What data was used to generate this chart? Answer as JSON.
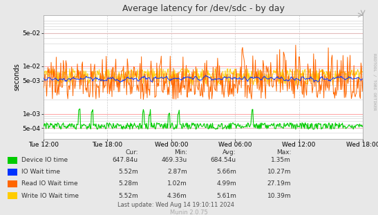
{
  "title": "Average latency for /dev/sdc - by day",
  "ylabel": "seconds",
  "watermark": "RRDTOOL / TOBI OETIKER",
  "munin_version": "Munin 2.0.75",
  "last_update": "Last update: Wed Aug 14 19:10:11 2024",
  "x_tick_labels": [
    "Tue 12:00",
    "Tue 18:00",
    "Wed 00:00",
    "Wed 06:00",
    "Wed 12:00",
    "Wed 18:00"
  ],
  "background_color": "#e8e8e8",
  "plot_bg_color": "#ffffff",
  "grid_color_major": "#ffaaaa",
  "grid_color_minor": "#cccccc",
  "grid_color_x": "#cccccc",
  "legend": [
    {
      "label": "Device IO time",
      "color": "#00cc00"
    },
    {
      "label": "IO Wait time",
      "color": "#0033ff"
    },
    {
      "label": "Read IO Wait time",
      "color": "#ff6600"
    },
    {
      "label": "Write IO Wait time",
      "color": "#ffcc00"
    }
  ],
  "legend_table": {
    "headers": [
      "Cur:",
      "Min:",
      "Avg:",
      "Max:"
    ],
    "rows": [
      [
        "Device IO time",
        "647.84u",
        "469.33u",
        "684.54u",
        "1.35m"
      ],
      [
        "IO Wait time",
        "5.52m",
        "2.87m",
        "5.66m",
        "10.27m"
      ],
      [
        "Read IO Wait time",
        "5.28m",
        "1.02m",
        "4.99m",
        "27.19m"
      ],
      [
        "Write IO Wait time",
        "5.52m",
        "4.36m",
        "5.61m",
        "10.39m"
      ]
    ]
  },
  "n_points": 500
}
